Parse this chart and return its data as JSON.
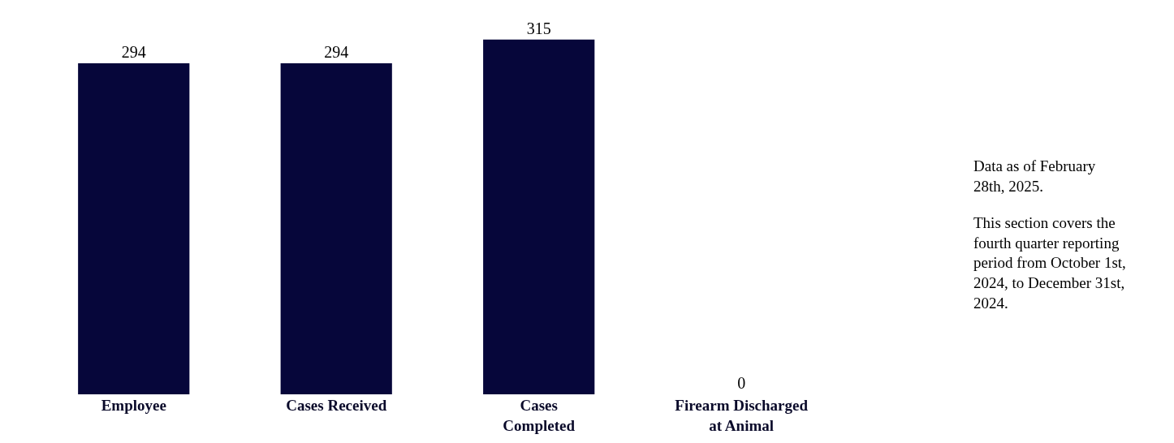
{
  "chart_data": {
    "type": "bar",
    "categories": [
      "Employee",
      "Cases Received",
      "Cases Completed",
      "Firearm Discharged at Animal"
    ],
    "values": [
      294,
      294,
      315,
      0
    ],
    "color": "#06063a",
    "data_labels": true,
    "annotations": [
      "Data as of February 28th, 2025.",
      "This section covers the fourth quarter reporting period from October 1st, 2024, to December 31st, 2024."
    ]
  }
}
